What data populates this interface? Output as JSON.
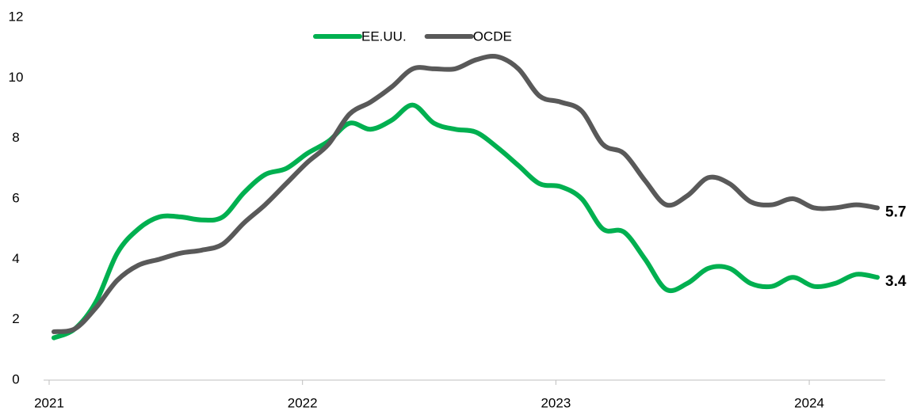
{
  "chart_data": {
    "type": "line",
    "categories": [
      "2021",
      null,
      null,
      null,
      null,
      null,
      null,
      null,
      null,
      null,
      null,
      null,
      "2022",
      null,
      null,
      null,
      null,
      null,
      null,
      null,
      null,
      null,
      null,
      null,
      "2023",
      null,
      null,
      null,
      null,
      null,
      null,
      null,
      null,
      null,
      null,
      null,
      "2024",
      null,
      null,
      null
    ],
    "series": [
      {
        "name": "EE.UU.",
        "color": "#00b050",
        "values": [
          1.4,
          1.7,
          2.6,
          4.2,
          5.0,
          5.4,
          5.4,
          5.3,
          5.4,
          6.2,
          6.8,
          7.0,
          7.5,
          7.9,
          8.5,
          8.3,
          8.6,
          9.1,
          8.5,
          8.3,
          8.2,
          7.7,
          7.1,
          6.5,
          6.4,
          6.0,
          5.0,
          4.9,
          4.0,
          3.0,
          3.2,
          3.7,
          3.7,
          3.2,
          3.1,
          3.4,
          3.1,
          3.2,
          3.5,
          3.4
        ]
      },
      {
        "name": "OCDE",
        "color": "#595959",
        "values": [
          1.6,
          1.7,
          2.4,
          3.3,
          3.8,
          4.0,
          4.2,
          4.3,
          4.5,
          5.2,
          5.8,
          6.5,
          7.2,
          7.8,
          8.8,
          9.2,
          9.7,
          10.3,
          10.3,
          10.3,
          10.6,
          10.7,
          10.3,
          9.4,
          9.2,
          8.9,
          7.8,
          7.5,
          6.6,
          5.8,
          6.1,
          6.7,
          6.5,
          5.9,
          5.8,
          6.0,
          5.7,
          5.7,
          5.8,
          5.7
        ]
      }
    ],
    "ylim": [
      0,
      12
    ],
    "yticks": [
      0,
      2,
      4,
      6,
      8,
      10,
      12
    ],
    "grid": false
  }
}
